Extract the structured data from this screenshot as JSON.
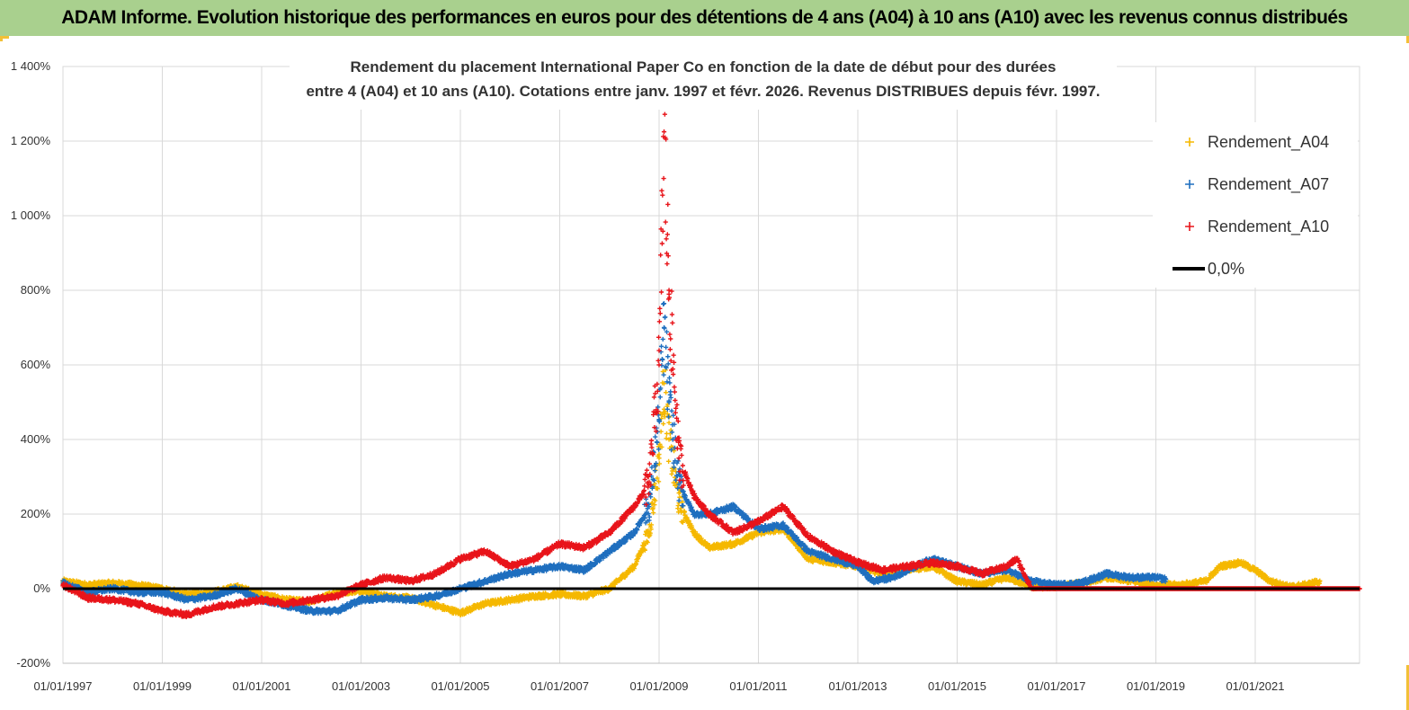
{
  "banner": {
    "title": "ADAM Informe. Evolution historique des performances en euros pour des détentions de 4 ans (A04) à 10 ans (A10) avec les revenus connus distribués"
  },
  "chart_data": {
    "type": "scatter",
    "title_lines": [
      "Rendement du placement International Paper Co en fonction de la date de début pour des durées",
      "entre 4 (A04) et 10 ans (A10).  Cotations entre janv. 1997 et févr. 2026. Revenus DISTRIBUES depuis févr. 1997."
    ],
    "y_tick_labels": [
      "-200%",
      "0%",
      "200%",
      "400%",
      "600%",
      "800%",
      "1 000%",
      "1 200%",
      "1 400%"
    ],
    "y_ticks": [
      -200,
      0,
      200,
      400,
      600,
      800,
      1000,
      1200,
      1400
    ],
    "ylim": [
      -200,
      1400
    ],
    "x_tick_labels": [
      "01/01/1997",
      "01/01/1999",
      "01/01/2001",
      "01/01/2003",
      "01/01/2005",
      "01/01/2007",
      "01/01/2009",
      "01/01/2011",
      "01/01/2013",
      "01/01/2015",
      "01/01/2017",
      "01/01/2019",
      "01/01/2021"
    ],
    "x_ticks": [
      1997,
      1999,
      2001,
      2003,
      2005,
      2007,
      2009,
      2011,
      2013,
      2015,
      2017,
      2019,
      2021
    ],
    "xlim": [
      1997,
      2023.1
    ],
    "x_unit": "year (decimal)",
    "y_unit": "percent",
    "series": [
      {
        "name": "Rendement_A04",
        "color": "#f5b800",
        "marker": "+",
        "points": [
          [
            1997.0,
            20
          ],
          [
            1997.5,
            10
          ],
          [
            1998.0,
            15
          ],
          [
            1998.5,
            10
          ],
          [
            1999.0,
            0
          ],
          [
            1999.5,
            -15
          ],
          [
            2000.0,
            -10
          ],
          [
            2000.5,
            5
          ],
          [
            2001.0,
            -15
          ],
          [
            2001.5,
            -30
          ],
          [
            2002.0,
            -35
          ],
          [
            2002.5,
            -10
          ],
          [
            2003.0,
            -5
          ],
          [
            2003.5,
            -20
          ],
          [
            2004.0,
            -25
          ],
          [
            2004.5,
            -45
          ],
          [
            2005.0,
            -65
          ],
          [
            2005.5,
            -40
          ],
          [
            2006.0,
            -30
          ],
          [
            2006.5,
            -20
          ],
          [
            2007.0,
            -15
          ],
          [
            2007.5,
            -20
          ],
          [
            2008.0,
            0
          ],
          [
            2008.5,
            60
          ],
          [
            2008.8,
            150
          ],
          [
            2009.0,
            350
          ],
          [
            2009.1,
            550
          ],
          [
            2009.2,
            400
          ],
          [
            2009.4,
            230
          ],
          [
            2009.7,
            150
          ],
          [
            2010.0,
            110
          ],
          [
            2010.5,
            120
          ],
          [
            2011.0,
            150
          ],
          [
            2011.5,
            160
          ],
          [
            2012.0,
            80
          ],
          [
            2012.5,
            70
          ],
          [
            2013.0,
            60
          ],
          [
            2013.5,
            40
          ],
          [
            2014.0,
            50
          ],
          [
            2014.5,
            60
          ],
          [
            2015.0,
            20
          ],
          [
            2015.5,
            10
          ],
          [
            2016.0,
            30
          ],
          [
            2016.5,
            5
          ],
          [
            2017.0,
            5
          ],
          [
            2017.5,
            15
          ],
          [
            2018.0,
            30
          ],
          [
            2018.5,
            20
          ],
          [
            2019.0,
            10
          ],
          [
            2019.5,
            10
          ],
          [
            2020.0,
            20
          ],
          [
            2020.3,
            60
          ],
          [
            2020.7,
            70
          ],
          [
            2021.0,
            50
          ],
          [
            2021.3,
            20
          ],
          [
            2021.7,
            5
          ],
          [
            2022.0,
            10
          ],
          [
            2022.3,
            20
          ]
        ]
      },
      {
        "name": "Rendement_A07",
        "color": "#1f6fbf",
        "marker": "+",
        "points": [
          [
            1997.0,
            15
          ],
          [
            1997.5,
            -10
          ],
          [
            1998.0,
            0
          ],
          [
            1998.5,
            -10
          ],
          [
            1999.0,
            -10
          ],
          [
            1999.5,
            -30
          ],
          [
            2000.0,
            -20
          ],
          [
            2000.5,
            0
          ],
          [
            2001.0,
            -30
          ],
          [
            2001.5,
            -45
          ],
          [
            2002.0,
            -60
          ],
          [
            2002.5,
            -60
          ],
          [
            2003.0,
            -30
          ],
          [
            2003.5,
            -25
          ],
          [
            2004.0,
            -30
          ],
          [
            2004.5,
            -20
          ],
          [
            2005.0,
            0
          ],
          [
            2005.5,
            20
          ],
          [
            2006.0,
            40
          ],
          [
            2006.5,
            50
          ],
          [
            2007.0,
            60
          ],
          [
            2007.5,
            50
          ],
          [
            2008.0,
            100
          ],
          [
            2008.5,
            150
          ],
          [
            2008.8,
            220
          ],
          [
            2009.0,
            450
          ],
          [
            2009.1,
            700
          ],
          [
            2009.2,
            500
          ],
          [
            2009.4,
            280
          ],
          [
            2009.7,
            200
          ],
          [
            2010.0,
            200
          ],
          [
            2010.5,
            220
          ],
          [
            2011.0,
            160
          ],
          [
            2011.5,
            170
          ],
          [
            2012.0,
            100
          ],
          [
            2012.5,
            80
          ],
          [
            2013.0,
            60
          ],
          [
            2013.3,
            20
          ],
          [
            2013.7,
            30
          ],
          [
            2014.0,
            50
          ],
          [
            2014.5,
            80
          ],
          [
            2015.0,
            60
          ],
          [
            2015.5,
            40
          ],
          [
            2016.0,
            50
          ],
          [
            2016.5,
            20
          ],
          [
            2017.0,
            10
          ],
          [
            2017.5,
            15
          ],
          [
            2018.0,
            40
          ],
          [
            2018.5,
            30
          ],
          [
            2019.0,
            30
          ],
          [
            2019.2,
            25
          ]
        ]
      },
      {
        "name": "Rendement_A10",
        "color": "#e8141a",
        "marker": "+",
        "points": [
          [
            1997.0,
            10
          ],
          [
            1997.5,
            -25
          ],
          [
            1998.0,
            -30
          ],
          [
            1998.5,
            -40
          ],
          [
            1999.0,
            -60
          ],
          [
            1999.5,
            -70
          ],
          [
            2000.0,
            -50
          ],
          [
            2000.5,
            -40
          ],
          [
            2001.0,
            -30
          ],
          [
            2001.5,
            -40
          ],
          [
            2002.0,
            -30
          ],
          [
            2002.5,
            -20
          ],
          [
            2003.0,
            10
          ],
          [
            2003.5,
            30
          ],
          [
            2004.0,
            20
          ],
          [
            2004.5,
            40
          ],
          [
            2005.0,
            80
          ],
          [
            2005.5,
            100
          ],
          [
            2006.0,
            60
          ],
          [
            2006.5,
            80
          ],
          [
            2007.0,
            120
          ],
          [
            2007.5,
            110
          ],
          [
            2008.0,
            150
          ],
          [
            2008.5,
            220
          ],
          [
            2008.8,
            280
          ],
          [
            2009.0,
            600
          ],
          [
            2009.1,
            1225
          ],
          [
            2009.2,
            800
          ],
          [
            2009.4,
            350
          ],
          [
            2009.7,
            250
          ],
          [
            2010.0,
            200
          ],
          [
            2010.5,
            150
          ],
          [
            2011.0,
            180
          ],
          [
            2011.5,
            220
          ],
          [
            2012.0,
            140
          ],
          [
            2012.5,
            100
          ],
          [
            2013.0,
            70
          ],
          [
            2013.5,
            50
          ],
          [
            2014.0,
            60
          ],
          [
            2014.5,
            70
          ],
          [
            2015.0,
            60
          ],
          [
            2015.5,
            40
          ],
          [
            2016.0,
            60
          ],
          [
            2016.2,
            80
          ],
          [
            2016.5,
            0
          ],
          [
            2023.1,
            0
          ]
        ]
      }
    ],
    "reference_line": {
      "name": "0,0%",
      "value": 0,
      "color": "#000000"
    },
    "legend": [
      {
        "label": "Rendement_A04",
        "type": "marker",
        "color": "#f5b800"
      },
      {
        "label": "Rendement_A07",
        "type": "marker",
        "color": "#1f6fbf"
      },
      {
        "label": "Rendement_A10",
        "type": "marker",
        "color": "#e8141a"
      },
      {
        "label": "0,0%",
        "type": "line",
        "color": "#000000"
      }
    ],
    "legend_position": "top-right",
    "grid": true
  }
}
